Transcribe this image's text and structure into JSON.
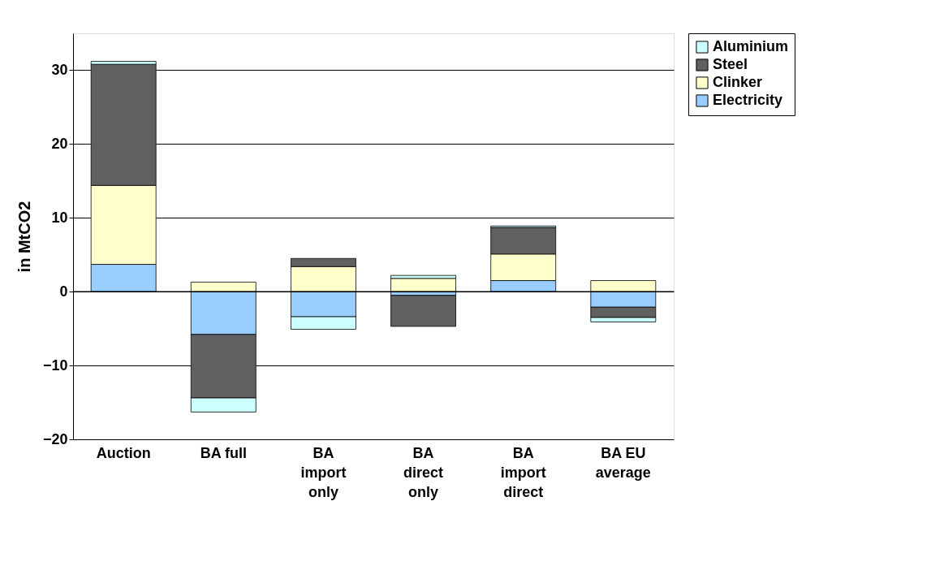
{
  "chart_data": {
    "type": "bar",
    "stacked": true,
    "ylabel": "in MtCO2",
    "categories": [
      "Auction",
      "BA full",
      "BA\nimport\nonly",
      "BA\ndirect\nonly",
      "BA\nimport\ndirect",
      "BA EU\naverage"
    ],
    "series": [
      {
        "name": "Electricity",
        "color": "#99ccff",
        "values": [
          3.7,
          -5.8,
          -3.4,
          -0.5,
          1.5,
          -2.1
        ]
      },
      {
        "name": "Clinker",
        "color": "#ffffcc",
        "values": [
          10.7,
          1.3,
          3.4,
          1.8,
          3.6,
          1.5
        ]
      },
      {
        "name": "Steel",
        "color": "#606060",
        "values": [
          16.4,
          -8.6,
          1.1,
          -4.2,
          3.6,
          -1.4
        ]
      },
      {
        "name": "Aluminium",
        "color": "#ccffff",
        "values": [
          0.4,
          -1.9,
          -1.7,
          0.4,
          0.2,
          -0.6
        ]
      }
    ],
    "ylim": [
      -20,
      35
    ],
    "yticks": [
      -20,
      -10,
      0,
      10,
      20,
      30
    ],
    "grid": "y",
    "legend": "right"
  }
}
